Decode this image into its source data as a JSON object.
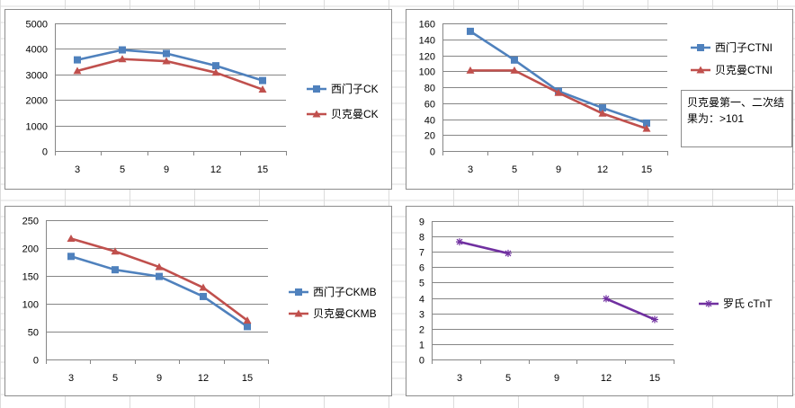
{
  "chart_data": [
    {
      "type": "line",
      "categories": [
        "3",
        "5",
        "9",
        "12",
        "15"
      ],
      "ylim": [
        0,
        5000
      ],
      "yticks": [
        0,
        1000,
        2000,
        3000,
        4000,
        5000
      ],
      "grid": true,
      "legend_position": "right",
      "series": [
        {
          "name": "西门子CK",
          "values": [
            3570,
            3960,
            3820,
            3340,
            2760
          ],
          "color": "#4f81bd",
          "marker": "square"
        },
        {
          "name": "贝克曼CK",
          "values": [
            3140,
            3600,
            3520,
            3070,
            2410
          ],
          "color": "#c0504d",
          "marker": "triangle"
        }
      ]
    },
    {
      "type": "line",
      "categories": [
        "3",
        "5",
        "9",
        "12",
        "15"
      ],
      "ylim": [
        0,
        160
      ],
      "yticks": [
        0,
        20,
        40,
        60,
        80,
        100,
        120,
        140,
        160
      ],
      "grid": true,
      "legend_position": "right",
      "annotation": "贝克曼第一、二次结果为：>101",
      "series": [
        {
          "name": "西门子CTNI",
          "values": [
            150,
            114,
            75,
            54,
            35
          ],
          "color": "#4f81bd",
          "marker": "square"
        },
        {
          "name": "贝克曼CTNI",
          "values": [
            101,
            101,
            73,
            47,
            28
          ],
          "color": "#c0504d",
          "marker": "triangle"
        }
      ]
    },
    {
      "type": "line",
      "categories": [
        "3",
        "5",
        "9",
        "12",
        "15"
      ],
      "ylim": [
        0,
        250
      ],
      "yticks": [
        0,
        50,
        100,
        150,
        200,
        250
      ],
      "grid": true,
      "legend_position": "right",
      "series": [
        {
          "name": "西门子CKMB",
          "values": [
            185,
            161,
            149,
            113,
            59
          ],
          "color": "#4f81bd",
          "marker": "square"
        },
        {
          "name": "贝克曼CKMB",
          "values": [
            217,
            194,
            166,
            129,
            70
          ],
          "color": "#c0504d",
          "marker": "triangle"
        }
      ]
    },
    {
      "type": "line",
      "categories": [
        "3",
        "5",
        "9",
        "12",
        "15"
      ],
      "ylim": [
        0,
        9
      ],
      "yticks": [
        0,
        1,
        2,
        3,
        4,
        5,
        6,
        7,
        8,
        9
      ],
      "grid": true,
      "legend_position": "right",
      "series": [
        {
          "name": "罗氏 cTnT",
          "values": [
            7.65,
            6.9,
            null,
            3.95,
            2.6
          ],
          "color": "#7030a0",
          "marker": "star"
        }
      ]
    }
  ]
}
